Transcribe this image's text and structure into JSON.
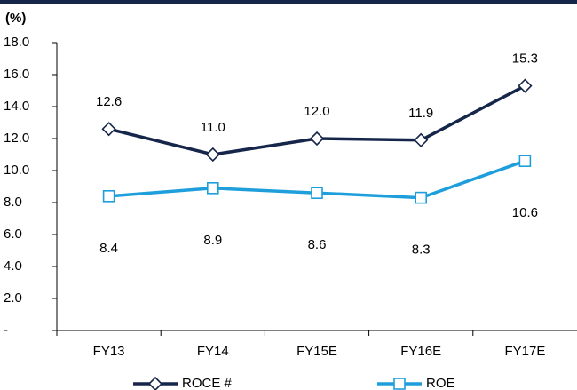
{
  "chart_data": {
    "type": "line",
    "y_label": "(%)",
    "categories": [
      "FY13",
      "FY14",
      "FY15E",
      "FY16E",
      "FY17E"
    ],
    "series": [
      {
        "name": "ROCE #",
        "color": "#16264a",
        "marker": "diamond",
        "label_position": "above",
        "values": [
          12.6,
          11.0,
          12.0,
          11.9,
          15.3
        ],
        "value_labels": [
          "12.6",
          "11.0",
          "12.0",
          "11.9",
          "15.3"
        ]
      },
      {
        "name": "ROE",
        "color": "#1e9fdb",
        "marker": "square",
        "label_position": "below",
        "values": [
          8.4,
          8.9,
          8.6,
          8.3,
          10.6
        ],
        "value_labels": [
          "8.4",
          "8.9",
          "8.6",
          "8.3",
          "10.6"
        ]
      }
    ],
    "ylim": [
      0,
      18
    ],
    "yticks": [
      {
        "value": 0,
        "label": "-"
      },
      {
        "value": 2,
        "label": "2.0"
      },
      {
        "value": 4,
        "label": "4.0"
      },
      {
        "value": 6,
        "label": "6.0"
      },
      {
        "value": 8,
        "label": "8.0"
      },
      {
        "value": 10,
        "label": "10.0"
      },
      {
        "value": 12,
        "label": "12.0"
      },
      {
        "value": 14,
        "label": "14.0"
      },
      {
        "value": 16,
        "label": "16.0"
      },
      {
        "value": 18,
        "label": "18.0"
      }
    ],
    "grid": false,
    "legend": "bottom"
  }
}
